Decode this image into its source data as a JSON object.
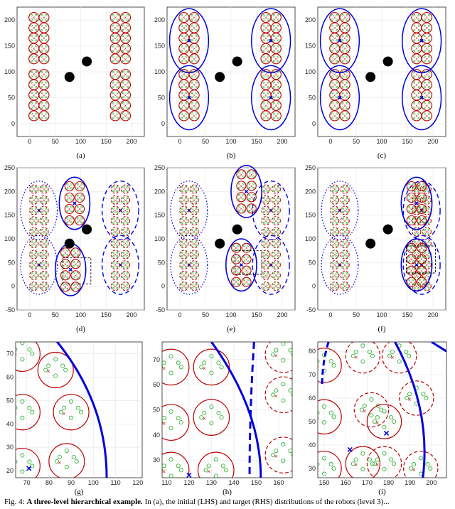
{
  "panel_labels": [
    "(a)",
    "(b)",
    "(c)",
    "(d)",
    "(e)",
    "(f)",
    "(g)",
    "(h)",
    "(i)"
  ],
  "row1": {
    "yticks": [
      "200",
      "150",
      "100",
      "50",
      "0"
    ],
    "xticks": [
      "0",
      "50",
      "100",
      "150",
      "200"
    ]
  },
  "row2": {
    "yticks": [
      "250",
      "200",
      "150",
      "100",
      "50",
      "0",
      "-50"
    ],
    "xticks": [
      "0",
      "50",
      "100",
      "150",
      "200"
    ]
  },
  "panel_g": {
    "yticks": [
      "70",
      "60",
      "50",
      "40",
      "30",
      "20"
    ],
    "xticks": [
      "70",
      "80",
      "90",
      "100",
      "110",
      "120"
    ]
  },
  "panel_h": {
    "yticks": [
      "70",
      "60",
      "50",
      "40",
      "30"
    ],
    "xticks": [
      "110",
      "120",
      "130",
      "140",
      "150",
      "160"
    ]
  },
  "panel_i": {
    "yticks": [
      "80",
      "70",
      "60",
      "50",
      "40",
      "30"
    ],
    "xticks": [
      "150",
      "160",
      "170",
      "180",
      "190",
      "200"
    ]
  },
  "caption": {
    "prefix": "Fig. 4: ",
    "bold": "A three-level hierarchical example.",
    "rest": " In (a), the initial (LHS) and target (RHS) distributions of the robots (level 3)..."
  },
  "colors": {
    "cluster": "#0000dd",
    "circle": "#bb0000",
    "robot": "#22aa22",
    "centroid": "#cc0000",
    "obstacle": "#000000"
  }
}
